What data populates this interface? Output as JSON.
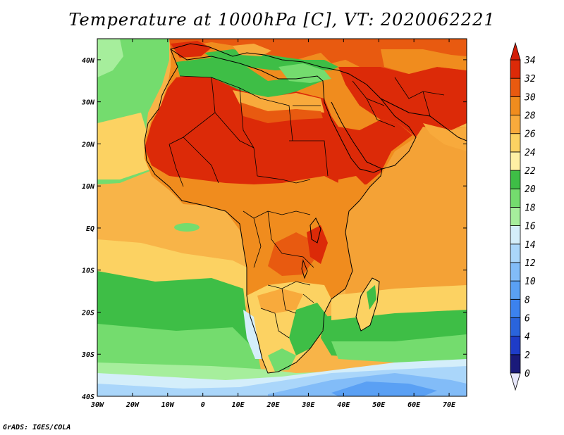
{
  "title": "Temperature at 1000hPa [C], VT: 2020062221",
  "credit": "GrADS: IGES/COLA",
  "map": {
    "lon_range": [
      -30,
      75
    ],
    "lat_range": [
      -40,
      45
    ],
    "lon_ticks": [
      {
        "value": -30,
        "label": "30W"
      },
      {
        "value": -20,
        "label": "20W"
      },
      {
        "value": -10,
        "label": "10W"
      },
      {
        "value": 0,
        "label": "0"
      },
      {
        "value": 10,
        "label": "10E"
      },
      {
        "value": 20,
        "label": "20E"
      },
      {
        "value": 30,
        "label": "30E"
      },
      {
        "value": 40,
        "label": "40E"
      },
      {
        "value": 50,
        "label": "50E"
      },
      {
        "value": 60,
        "label": "60E"
      },
      {
        "value": 70,
        "label": "70E"
      }
    ],
    "lat_ticks": [
      {
        "value": 40,
        "label": "40N"
      },
      {
        "value": 30,
        "label": "30N"
      },
      {
        "value": 20,
        "label": "20N"
      },
      {
        "value": 10,
        "label": "10N"
      },
      {
        "value": 0,
        "label": "EQ"
      },
      {
        "value": -10,
        "label": "10S"
      },
      {
        "value": -20,
        "label": "20S"
      },
      {
        "value": -30,
        "label": "30S"
      },
      {
        "value": -40,
        "label": "40S"
      }
    ]
  },
  "colorbar": {
    "levels": [
      0,
      2,
      4,
      6,
      8,
      10,
      12,
      14,
      16,
      18,
      20,
      22,
      24,
      26,
      28,
      30,
      32,
      34
    ],
    "colors": [
      "#1a1a7a",
      "#1e3cc8",
      "#2a64dc",
      "#3c82ee",
      "#5aa0f4",
      "#82bcf8",
      "#aad6fa",
      "#d4eefa",
      "#a6ee9c",
      "#74dc6e",
      "#3ebe46",
      "#fff0a4",
      "#fcd262",
      "#f8aa3c",
      "#f08c1e",
      "#e85a10",
      "#dc2a08"
    ],
    "under_color": "#e6e6fa",
    "over_color": "#d21e08"
  }
}
